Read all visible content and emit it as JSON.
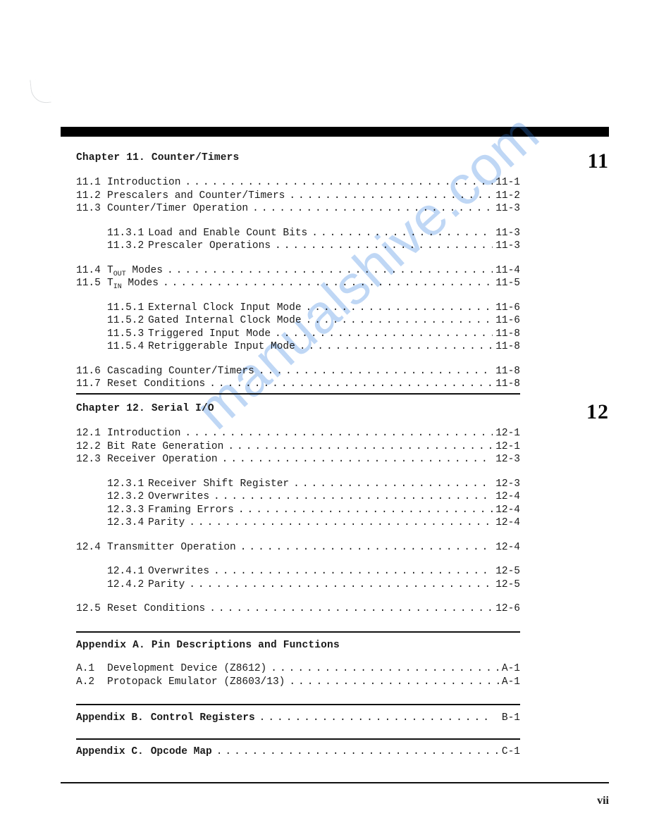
{
  "watermark_text": "manualshive.com",
  "side_numbers": {
    "n11": "11",
    "n12": "12"
  },
  "footer": "vii",
  "chapter11": {
    "title": "Chapter 11.  Counter/Timers",
    "rows": [
      {
        "num": "11.1",
        "title": "Introduction",
        "page": "11-1",
        "sub": false
      },
      {
        "num": "11.2",
        "title": "Prescalers and Counter/Timers",
        "page": "11-2",
        "sub": false
      },
      {
        "num": "11.3",
        "title": "Counter/Timer Operation",
        "page": "11-3",
        "sub": false
      }
    ],
    "rows_sub1": [
      {
        "num": "11.3.1",
        "title": "Load and Enable Count Bits",
        "page": "11-3"
      },
      {
        "num": "11.3.2",
        "title": "Prescaler Operations",
        "page": "11-3"
      }
    ],
    "rows2": [
      {
        "num": "11.4",
        "title_html": "T<sub>OUT</sub> Modes",
        "page": "11-4",
        "sub": false
      },
      {
        "num": "11.5",
        "title_html": "T<sub>IN</sub> Modes",
        "page": "11-5",
        "sub": false
      }
    ],
    "rows_sub2": [
      {
        "num": "11.5.1",
        "title": "External Clock Input Mode",
        "page": "11-6"
      },
      {
        "num": "11.5.2",
        "title": "Gated Internal Clock Mode",
        "page": "11-6"
      },
      {
        "num": "11.5.3",
        "title": "Triggered Input Mode",
        "page": "11-8"
      },
      {
        "num": "11.5.4",
        "title": "Retriggerable Input Mode",
        "page": "11-8"
      }
    ],
    "rows3": [
      {
        "num": "11.6",
        "title": "Cascading Counter/Timers",
        "page": "11-8",
        "sub": false
      },
      {
        "num": "11.7",
        "title": "Reset Conditions",
        "page": "11-8",
        "sub": false
      }
    ]
  },
  "chapter12": {
    "title": "Chapter 12.  Serial I/O",
    "rows": [
      {
        "num": "12.1",
        "title": "Introduction",
        "page": "12-1"
      },
      {
        "num": "12.2",
        "title": "Bit Rate Generation",
        "page": "12-1"
      },
      {
        "num": "12.3",
        "title": "Receiver Operation",
        "page": "12-3"
      }
    ],
    "rows_sub1": [
      {
        "num": "12.3.1",
        "title": "Receiver Shift Register",
        "page": "12-3"
      },
      {
        "num": "12.3.2",
        "title": "Overwrites",
        "page": "12-4"
      },
      {
        "num": "12.3.3",
        "title": "Framing Errors",
        "page": "12-4"
      },
      {
        "num": "12.3.4",
        "title": "Parity",
        "page": "12-4"
      }
    ],
    "rows2": [
      {
        "num": "12.4",
        "title": "Transmitter Operation",
        "page": "12-4"
      }
    ],
    "rows_sub2": [
      {
        "num": "12.4.1",
        "title": "Overwrites",
        "page": "12-5"
      },
      {
        "num": "12.4.2",
        "title": "Parity",
        "page": "12-5"
      }
    ],
    "rows3": [
      {
        "num": "12.5",
        "title": "Reset Conditions",
        "page": "12-6"
      }
    ]
  },
  "appendixA": {
    "title": "Appendix A.  Pin Descriptions and Functions",
    "rows": [
      {
        "num": "A.1",
        "title": "Development Device (Z8612)",
        "page": "A-1"
      },
      {
        "num": "A.2",
        "title": "Protopack Emulator (Z8603/13)",
        "page": "A-1"
      }
    ]
  },
  "appendixB": {
    "label": "Appendix B.",
    "title": "Control Registers",
    "page": "B-1"
  },
  "appendixC": {
    "label": "Appendix C.",
    "title": "Opcode Map",
    "page": "C-1"
  }
}
